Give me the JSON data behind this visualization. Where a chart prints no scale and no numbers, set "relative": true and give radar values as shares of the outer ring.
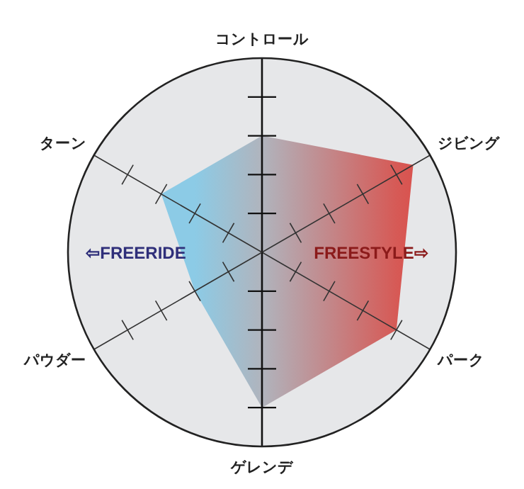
{
  "chart_data": {
    "type": "radar",
    "relative": true,
    "categories": [
      "コントロール",
      "ジビング",
      "パーク",
      "ゲレンデ",
      "パウダー",
      "ターン"
    ],
    "series": [
      {
        "colors": [
          "#b0b4bd",
          "#d9534f",
          "#d65a56",
          "#b0b4bd",
          "#8ccbe6",
          "#8ccbe6"
        ],
        "values": [
          0.6,
          0.9,
          0.8,
          0.8,
          0.4,
          0.6
        ]
      }
    ],
    "annotations": [
      "⇦FREERIDE",
      "FREESTYLE⇨"
    ]
  }
}
